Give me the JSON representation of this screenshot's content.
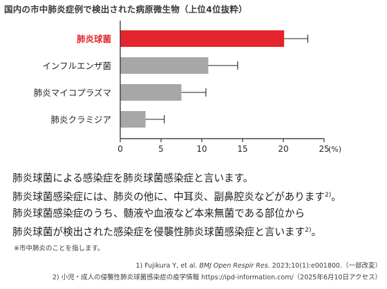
{
  "chart_data": {
    "type": "bar",
    "orientation": "horizontal",
    "title": "国内の市中肺炎症例で検出された病原微生物（上位4位抜粋）",
    "categories": [
      "肺炎球菌",
      "インフルエンザ菌",
      "肺炎マイコプラズマ",
      "肺炎クラミジア"
    ],
    "values": [
      20.1,
      10.8,
      7.5,
      3.1
    ],
    "error_upper": [
      23.0,
      14.4,
      10.5,
      5.4
    ],
    "highlight_index": 0,
    "xlim": [
      0,
      25
    ],
    "xticks": [
      0,
      5,
      10,
      15,
      20,
      25
    ],
    "xunit": "(%)",
    "grid": false
  },
  "colors": {
    "highlight": "#e4252d",
    "bar": "#a7a7a7",
    "axis": "#231f20",
    "text": "#231f20"
  },
  "body": {
    "line1": "肺炎球菌による感染症を肺炎球菌感染症と言います。",
    "line2": "肺炎球菌感染症には、肺炎の他に、中耳炎、副鼻腔炎などがあります",
    "line2_ref": "2)",
    "line2_end": "。",
    "line3": "肺炎球菌感染症のうち、髄液や血液など本来無菌である部位から",
    "line4": "肺炎球菌が検出された感染症を侵襲性肺炎球菌感染症と言います",
    "line4_ref": "2)",
    "line4_end": "。"
  },
  "footnote": "※市中肺炎のことを指します。",
  "refs": {
    "r1_pre": "1) Fujikura Y, et al. ",
    "r1_journal": "BMJ Open Respir Res.",
    "r1_post": " 2023;10(1):e001800.（一部改変）",
    "r2": "2) 小児・成人の侵襲性肺炎球菌感染症の疫学情報 https://ipd-information.com/（2025年6月10日アクセス）"
  }
}
